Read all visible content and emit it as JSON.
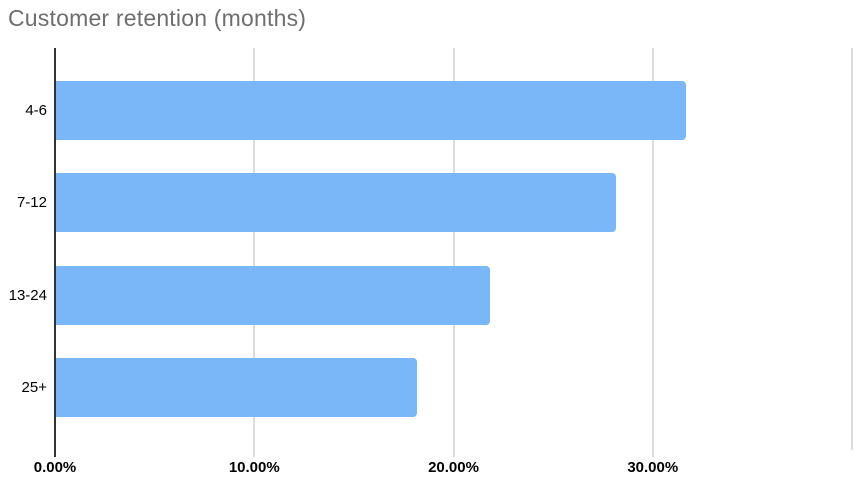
{
  "title": "Customer retention (months)",
  "colors": {
    "bar": "#7ab7f8",
    "title_text": "#6e6e6e",
    "axis_line": "#333333",
    "gridline": "#dcdcdc",
    "label_text": "#000000"
  },
  "chart_data": {
    "type": "bar",
    "orientation": "horizontal",
    "title": "Customer retention (months)",
    "categories": [
      "4-6",
      "7-12",
      "13-24",
      "25+"
    ],
    "values": [
      31.7,
      28.2,
      21.9,
      18.2
    ],
    "value_unit": "percent",
    "xlabel": "",
    "ylabel": "",
    "xlim": [
      0,
      40
    ],
    "x_ticks": [
      0,
      10,
      20,
      30
    ],
    "x_tick_labels": [
      "0.00%",
      "10.00%",
      "20.00%",
      "30.00%"
    ],
    "gridlines": [
      10,
      20,
      30,
      40
    ],
    "grid": true,
    "legend_position": "none"
  }
}
